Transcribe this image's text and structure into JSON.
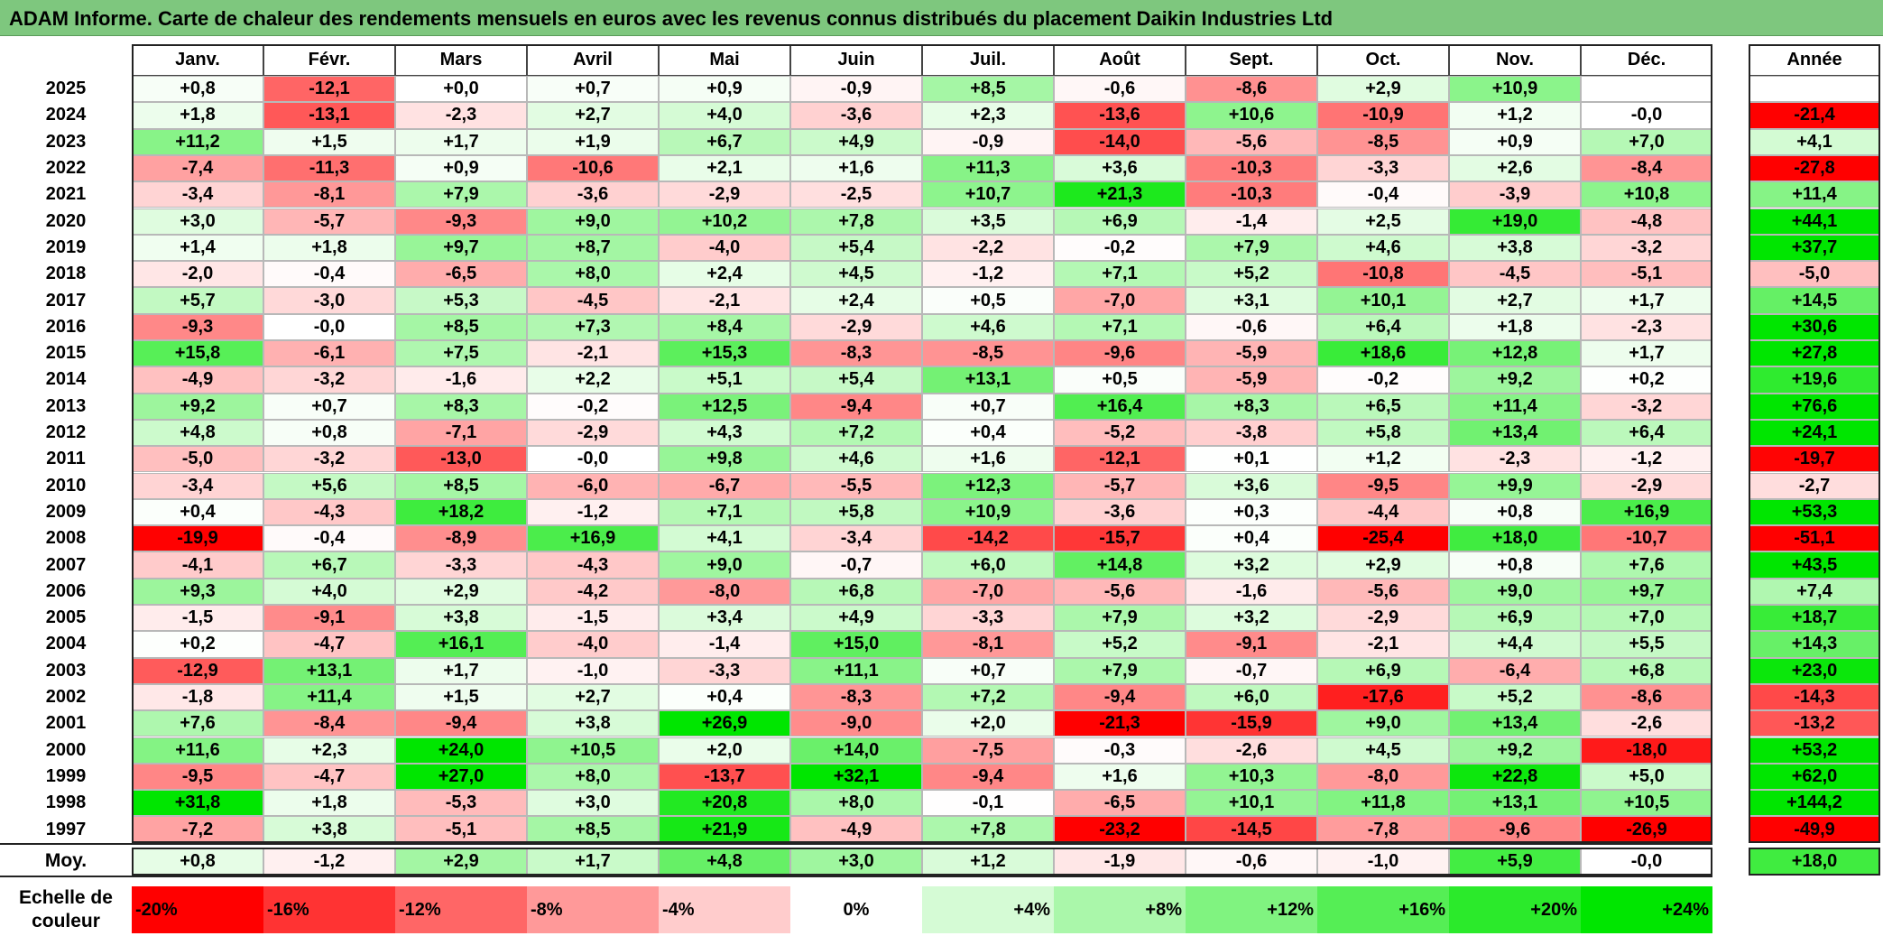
{
  "title": "ADAM Informe. Carte de chaleur des rendements mensuels en euros avec les revenus connus distribués du placement Daikin Industries Ltd",
  "chart_data": {
    "type": "heatmap",
    "title": "ADAM Informe. Carte de chaleur des rendements mensuels en euros avec les revenus connus distribués du placement Daikin Industries Ltd",
    "columns": [
      "Janv.",
      "Févr.",
      "Mars",
      "Avril",
      "Mai",
      "Juin",
      "Juil.",
      "Août",
      "Sept.",
      "Oct.",
      "Nov.",
      "Déc."
    ],
    "year_column_label": "Année",
    "rows": [
      {
        "year": "2025",
        "values": [
          "+0,8",
          "-12,1",
          "+0,0",
          "+0,7",
          "+0,9",
          "-0,9",
          "+8,5",
          "-0,6",
          "-8,6",
          "+2,9",
          "+10,9",
          ""
        ],
        "annual": ""
      },
      {
        "year": "2024",
        "values": [
          "+1,8",
          "-13,1",
          "-2,3",
          "+2,7",
          "+4,0",
          "-3,6",
          "+2,3",
          "-13,6",
          "+10,6",
          "-10,9",
          "+1,2",
          "-0,0"
        ],
        "annual": "-21,4"
      },
      {
        "year": "2023",
        "values": [
          "+11,2",
          "+1,5",
          "+1,7",
          "+1,9",
          "+6,7",
          "+4,9",
          "-0,9",
          "-14,0",
          "-5,6",
          "-8,5",
          "+0,9",
          "+7,0"
        ],
        "annual": "+4,1"
      },
      {
        "year": "2022",
        "values": [
          "-7,4",
          "-11,3",
          "+0,9",
          "-10,6",
          "+2,1",
          "+1,6",
          "+11,3",
          "+3,6",
          "-10,3",
          "-3,3",
          "+2,6",
          "-8,4"
        ],
        "annual": "-27,8"
      },
      {
        "year": "2021",
        "values": [
          "-3,4",
          "-8,1",
          "+7,9",
          "-3,6",
          "-2,9",
          "-2,5",
          "+10,7",
          "+21,3",
          "-10,3",
          "-0,4",
          "-3,9",
          "+10,8"
        ],
        "annual": "+11,4"
      },
      {
        "year": "2020",
        "values": [
          "+3,0",
          "-5,7",
          "-9,3",
          "+9,0",
          "+10,2",
          "+7,8",
          "+3,5",
          "+6,9",
          "-1,4",
          "+2,5",
          "+19,0",
          "-4,8"
        ],
        "annual": "+44,1"
      },
      {
        "year": "2019",
        "values": [
          "+1,4",
          "+1,8",
          "+9,7",
          "+8,7",
          "-4,0",
          "+5,4",
          "-2,2",
          "-0,2",
          "+7,9",
          "+4,6",
          "+3,8",
          "-3,2"
        ],
        "annual": "+37,7"
      },
      {
        "year": "2018",
        "values": [
          "-2,0",
          "-0,4",
          "-6,5",
          "+8,0",
          "+2,4",
          "+4,5",
          "-1,2",
          "+7,1",
          "+5,2",
          "-10,8",
          "-4,5",
          "-5,1"
        ],
        "annual": "-5,0"
      },
      {
        "year": "2017",
        "values": [
          "+5,7",
          "-3,0",
          "+5,3",
          "-4,5",
          "-2,1",
          "+2,4",
          "+0,5",
          "-7,0",
          "+3,1",
          "+10,1",
          "+2,7",
          "+1,7"
        ],
        "annual": "+14,5"
      },
      {
        "year": "2016",
        "values": [
          "-9,3",
          "-0,0",
          "+8,5",
          "+7,3",
          "+8,4",
          "-2,9",
          "+4,6",
          "+7,1",
          "-0,6",
          "+6,4",
          "+1,8",
          "-2,3"
        ],
        "annual": "+30,6"
      },
      {
        "year": "2015",
        "values": [
          "+15,8",
          "-6,1",
          "+7,5",
          "-2,1",
          "+15,3",
          "-8,3",
          "-8,5",
          "-9,6",
          "-5,9",
          "+18,6",
          "+12,8",
          "+1,7"
        ],
        "annual": "+27,8"
      },
      {
        "year": "2014",
        "values": [
          "-4,9",
          "-3,2",
          "-1,6",
          "+2,2",
          "+5,1",
          "+5,4",
          "+13,1",
          "+0,5",
          "-5,9",
          "-0,2",
          "+9,2",
          "+0,2"
        ],
        "annual": "+19,6"
      },
      {
        "year": "2013",
        "values": [
          "+9,2",
          "+0,7",
          "+8,3",
          "-0,2",
          "+12,5",
          "-9,4",
          "+0,7",
          "+16,4",
          "+8,3",
          "+6,5",
          "+11,4",
          "-3,2"
        ],
        "annual": "+76,6"
      },
      {
        "year": "2012",
        "values": [
          "+4,8",
          "+0,8",
          "-7,1",
          "-2,9",
          "+4,3",
          "+7,2",
          "+0,4",
          "-5,2",
          "-3,8",
          "+5,8",
          "+13,4",
          "+6,4"
        ],
        "annual": "+24,1"
      },
      {
        "year": "2011",
        "values": [
          "-5,0",
          "-3,2",
          "-13,0",
          "-0,0",
          "+9,8",
          "+4,6",
          "+1,6",
          "-12,1",
          "+0,1",
          "+1,2",
          "-2,3",
          "-1,2"
        ],
        "annual": "-19,7"
      },
      {
        "year": "2010",
        "values": [
          "-3,4",
          "+5,6",
          "+8,5",
          "-6,0",
          "-6,7",
          "-5,5",
          "+12,3",
          "-5,7",
          "+3,6",
          "-9,5",
          "+9,9",
          "-2,9"
        ],
        "annual": "-2,7"
      },
      {
        "year": "2009",
        "values": [
          "+0,4",
          "-4,3",
          "+18,2",
          "-1,2",
          "+7,1",
          "+5,8",
          "+10,9",
          "-3,6",
          "+0,3",
          "-4,4",
          "+0,8",
          "+16,9"
        ],
        "annual": "+53,3"
      },
      {
        "year": "2008",
        "values": [
          "-19,9",
          "-0,4",
          "-8,9",
          "+16,9",
          "+4,1",
          "-3,4",
          "-14,2",
          "-15,7",
          "+0,4",
          "-25,4",
          "+18,0",
          "-10,7"
        ],
        "annual": "-51,1"
      },
      {
        "year": "2007",
        "values": [
          "-4,1",
          "+6,7",
          "-3,3",
          "-4,3",
          "+9,0",
          "-0,7",
          "+6,0",
          "+14,8",
          "+3,2",
          "+2,9",
          "+0,8",
          "+7,6"
        ],
        "annual": "+43,5"
      },
      {
        "year": "2006",
        "values": [
          "+9,3",
          "+4,0",
          "+2,9",
          "-4,2",
          "-8,0",
          "+6,8",
          "-7,0",
          "-5,6",
          "-1,6",
          "-5,6",
          "+9,0",
          "+9,7"
        ],
        "annual": "+7,4"
      },
      {
        "year": "2005",
        "values": [
          "-1,5",
          "-9,1",
          "+3,8",
          "-1,5",
          "+3,4",
          "+4,9",
          "-3,3",
          "+7,9",
          "+3,2",
          "-2,9",
          "+6,9",
          "+7,0"
        ],
        "annual": "+18,7"
      },
      {
        "year": "2004",
        "values": [
          "+0,2",
          "-4,7",
          "+16,1",
          "-4,0",
          "-1,4",
          "+15,0",
          "-8,1",
          "+5,2",
          "-9,1",
          "-2,1",
          "+4,4",
          "+5,5"
        ],
        "annual": "+14,3"
      },
      {
        "year": "2003",
        "values": [
          "-12,9",
          "+13,1",
          "+1,7",
          "-1,0",
          "-3,3",
          "+11,1",
          "+0,7",
          "+7,9",
          "-0,7",
          "+6,9",
          "-6,4",
          "+6,8"
        ],
        "annual": "+23,0"
      },
      {
        "year": "2002",
        "values": [
          "-1,8",
          "+11,4",
          "+1,5",
          "+2,7",
          "+0,4",
          "-8,3",
          "+7,2",
          "-9,4",
          "+6,0",
          "-17,6",
          "+5,2",
          "-8,6"
        ],
        "annual": "-14,3"
      },
      {
        "year": "2001",
        "values": [
          "+7,6",
          "-8,4",
          "-9,4",
          "+3,8",
          "+26,9",
          "-9,0",
          "+2,0",
          "-21,3",
          "-15,9",
          "+9,0",
          "+13,4",
          "-2,6"
        ],
        "annual": "-13,2"
      },
      {
        "year": "2000",
        "values": [
          "+11,6",
          "+2,3",
          "+24,0",
          "+10,5",
          "+2,0",
          "+14,0",
          "-7,5",
          "-0,3",
          "-2,6",
          "+4,5",
          "+9,2",
          "-18,0"
        ],
        "annual": "+53,2"
      },
      {
        "year": "1999",
        "values": [
          "-9,5",
          "-4,7",
          "+27,0",
          "+8,0",
          "-13,7",
          "+32,1",
          "-9,4",
          "+1,6",
          "+10,3",
          "-8,0",
          "+22,8",
          "+5,0"
        ],
        "annual": "+62,0"
      },
      {
        "year": "1998",
        "values": [
          "+31,8",
          "+1,8",
          "-5,3",
          "+3,0",
          "+20,8",
          "+8,0",
          "-0,1",
          "-6,5",
          "+10,1",
          "+11,8",
          "+13,1",
          "+10,5"
        ],
        "annual": "+144,2"
      },
      {
        "year": "1997",
        "values": [
          "-7,2",
          "+3,8",
          "-5,1",
          "+8,5",
          "+21,9",
          "-4,9",
          "+7,8",
          "-23,2",
          "-14,5",
          "-7,8",
          "-9,6",
          "-26,9"
        ],
        "annual": "-49,9"
      }
    ],
    "average": {
      "label": "Moy.",
      "values": [
        "+0,8",
        "-1,2",
        "+2,9",
        "+1,7",
        "+4,8",
        "+3,0",
        "+1,2",
        "-1,9",
        "-0,6",
        "-1,0",
        "+5,9",
        "-0,0"
      ],
      "annual": "+18,0"
    },
    "color_scale": {
      "label_line1": "Echelle de",
      "label_line2": "couleur",
      "steps": [
        "-20%",
        "-16%",
        "-12%",
        "-8%",
        "-4%",
        "0%",
        "+4%",
        "+8%",
        "+12%",
        "+16%",
        "+20%",
        "+24%"
      ]
    }
  }
}
